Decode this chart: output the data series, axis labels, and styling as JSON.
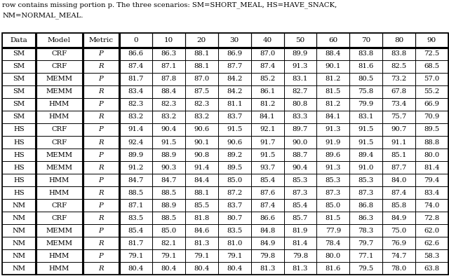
{
  "caption_line1": "row contains missing portion p. The three scenarios: SM=SHORT_MEAL, HS=HAVE_SNACK,",
  "caption_line2": "NM=NORMAL_MEAL.",
  "col_headers": [
    "Data",
    "Model",
    "Metric",
    "0",
    "10",
    "20",
    "30",
    "40",
    "50",
    "60",
    "70",
    "80",
    "90"
  ],
  "rows": [
    [
      "SM",
      "CRF",
      "P",
      "86.6",
      "86.3",
      "88.1",
      "86.9",
      "87.0",
      "89.9",
      "88.4",
      "83.8",
      "83.8",
      "72.5"
    ],
    [
      "SM",
      "CRF",
      "R",
      "87.4",
      "87.1",
      "88.1",
      "87.7",
      "87.4",
      "91.3",
      "90.1",
      "81.6",
      "82.5",
      "68.5"
    ],
    [
      "SM",
      "MEMM",
      "P",
      "81.7",
      "87.8",
      "87.0",
      "84.2",
      "85.2",
      "83.1",
      "81.2",
      "80.5",
      "73.2",
      "57.0"
    ],
    [
      "SM",
      "MEMM",
      "R",
      "83.4",
      "88.4",
      "87.5",
      "84.2",
      "86.1",
      "82.7",
      "81.5",
      "75.8",
      "67.8",
      "55.2"
    ],
    [
      "SM",
      "HMM",
      "P",
      "82.3",
      "82.3",
      "82.3",
      "81.1",
      "81.2",
      "80.8",
      "81.2",
      "79.9",
      "73.4",
      "66.9"
    ],
    [
      "SM",
      "HMM",
      "R",
      "83.2",
      "83.2",
      "83.2",
      "83.7",
      "84.1",
      "83.3",
      "84.1",
      "83.1",
      "75.7",
      "70.9"
    ],
    [
      "HS",
      "CRF",
      "P",
      "91.4",
      "90.4",
      "90.6",
      "91.5",
      "92.1",
      "89.7",
      "91.3",
      "91.5",
      "90.7",
      "89.5"
    ],
    [
      "HS",
      "CRF",
      "R",
      "92.4",
      "91.5",
      "90.1",
      "90.6",
      "91.7",
      "90.0",
      "91.9",
      "91.5",
      "91.1",
      "88.8"
    ],
    [
      "HS",
      "MEMM",
      "P",
      "89.9",
      "88.9",
      "90.8",
      "89.2",
      "91.5",
      "88.7",
      "89.6",
      "89.4",
      "85.1",
      "80.0"
    ],
    [
      "HS",
      "MEMM",
      "R",
      "91.2",
      "90.3",
      "91.4",
      "89.5",
      "93.7",
      "90.4",
      "91.3",
      "91.0",
      "87.7",
      "81.4"
    ],
    [
      "HS",
      "HMM",
      "P",
      "84.7",
      "84.7",
      "84.4",
      "85.0",
      "85.4",
      "85.3",
      "85.3",
      "85.3",
      "84.0",
      "79.4"
    ],
    [
      "HS",
      "HMM",
      "R",
      "88.5",
      "88.5",
      "88.1",
      "87.2",
      "87.6",
      "87.3",
      "87.3",
      "87.3",
      "87.4",
      "83.4"
    ],
    [
      "NM",
      "CRF",
      "P",
      "87.1",
      "88.9",
      "85.5",
      "83.7",
      "87.4",
      "85.4",
      "85.0",
      "86.8",
      "85.8",
      "74.0"
    ],
    [
      "NM",
      "CRF",
      "R",
      "83.5",
      "88.5",
      "81.8",
      "80.7",
      "86.6",
      "85.7",
      "81.5",
      "86.3",
      "84.9",
      "72.8"
    ],
    [
      "NM",
      "MEMM",
      "P",
      "85.4",
      "85.0",
      "84.6",
      "83.5",
      "84.8",
      "81.9",
      "77.9",
      "78.3",
      "75.0",
      "62.0"
    ],
    [
      "NM",
      "MEMM",
      "R",
      "81.7",
      "82.1",
      "81.3",
      "81.0",
      "84.9",
      "81.4",
      "78.4",
      "79.7",
      "76.9",
      "62.6"
    ],
    [
      "NM",
      "HMM",
      "P",
      "79.1",
      "79.1",
      "79.1",
      "79.1",
      "79.8",
      "79.8",
      "80.0",
      "77.1",
      "74.7",
      "58.3"
    ],
    [
      "NM",
      "HMM",
      "R",
      "80.4",
      "80.4",
      "80.4",
      "80.4",
      "81.3",
      "81.3",
      "81.6",
      "79.5",
      "78.0",
      "63.8"
    ]
  ],
  "fig_width": 6.4,
  "fig_height": 3.94,
  "dpi": 100,
  "double_vline_cols": [
    0,
    1,
    2
  ],
  "font_size": 7.5
}
